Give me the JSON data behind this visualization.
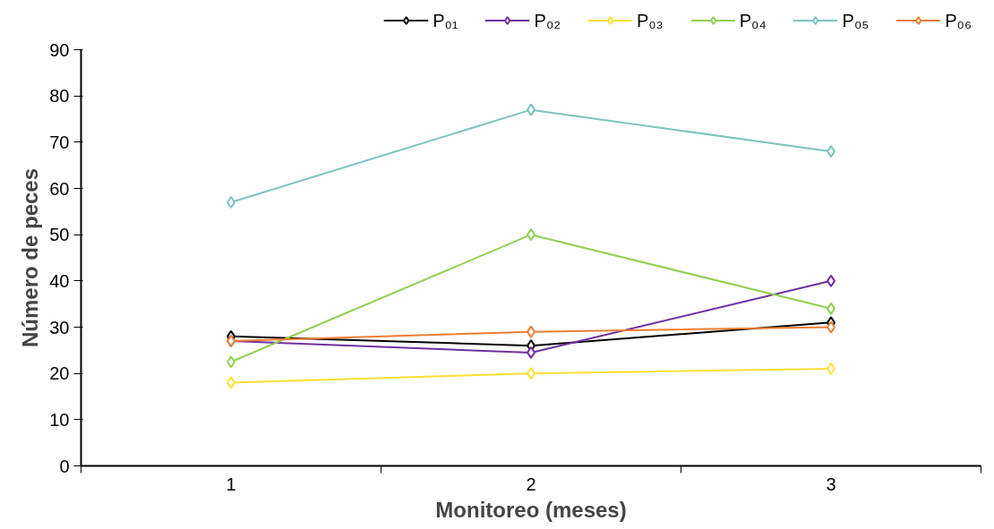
{
  "chart_data": {
    "type": "line",
    "xlabel": "Monitoreo (meses)",
    "ylabel": "Número de peces",
    "categories": [
      "1",
      "2",
      "3"
    ],
    "ylim": [
      0,
      90
    ],
    "yticks": [
      0,
      10,
      20,
      30,
      40,
      50,
      60,
      70,
      80,
      90
    ],
    "grid": false,
    "legend": "top",
    "marker": "diamond",
    "line_style": "solid",
    "series": [
      {
        "name": "P₀₁",
        "color": "#000000",
        "values": [
          28,
          26,
          31
        ]
      },
      {
        "name": "P₀₂",
        "color": "#7030a0",
        "values": [
          27,
          24.5,
          40
        ]
      },
      {
        "name": "P₀₃",
        "color": "#ffe033",
        "values": [
          18,
          20,
          21
        ]
      },
      {
        "name": "P₀₄",
        "color": "#92d050",
        "values": [
          22.5,
          50,
          34
        ]
      },
      {
        "name": "P₀₅",
        "color": "#7cc4bf",
        "values": [
          57,
          77,
          68
        ]
      },
      {
        "name": "P₀₆",
        "color": "#ed7d31",
        "values": [
          27,
          29,
          30
        ]
      }
    ]
  }
}
